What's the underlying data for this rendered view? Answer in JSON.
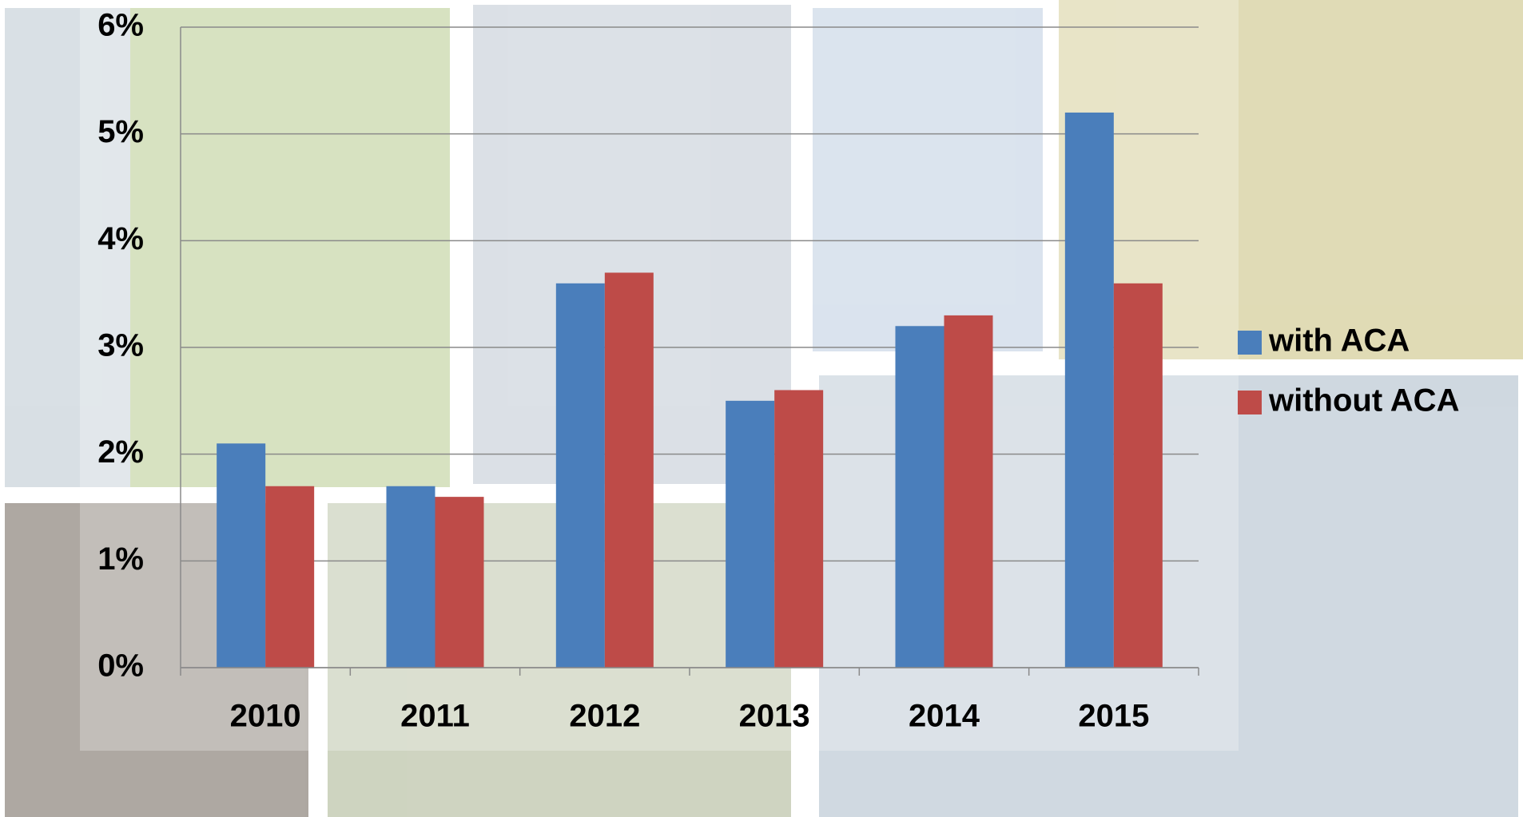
{
  "chart_data": {
    "type": "bar",
    "categories": [
      "2010",
      "2011",
      "2012",
      "2013",
      "2014",
      "2015"
    ],
    "series": [
      {
        "name": "with ACA",
        "color": "#4a7ebb",
        "values": [
          2.1,
          1.7,
          3.6,
          2.5,
          3.2,
          5.2
        ]
      },
      {
        "name": "without ACA",
        "color": "#be4b48",
        "values": [
          1.7,
          1.6,
          3.7,
          2.6,
          3.3,
          3.6
        ]
      }
    ],
    "ylim": [
      0,
      6
    ],
    "yticks": [
      {
        "value": 0,
        "label": "0%"
      },
      {
        "value": 1,
        "label": "1%"
      },
      {
        "value": 2,
        "label": "2%"
      },
      {
        "value": 3,
        "label": "3%"
      },
      {
        "value": 4,
        "label": "4%"
      },
      {
        "value": 5,
        "label": "5%"
      },
      {
        "value": 6,
        "label": "6%"
      }
    ],
    "grid": true,
    "legend": "right"
  }
}
